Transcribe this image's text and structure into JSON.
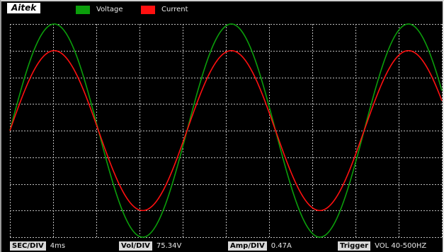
{
  "brand": "Aitek",
  "legend": [
    {
      "label": "Voltage",
      "color": "#0b9e0b"
    },
    {
      "label": "Current",
      "color": "#ff1010"
    }
  ],
  "status": {
    "sec_div_label": "SEC/DIV",
    "sec_div_value": "4ms",
    "vol_div_label": "Vol/DIV",
    "vol_div_value": "75.34V",
    "amp_div_label": "Amp/DIV",
    "amp_div_value": "0.47A",
    "trigger_label": "Trigger",
    "trigger_value": "VOL 40-500HZ"
  },
  "chart_data": {
    "type": "line",
    "x_unit": "divisions",
    "y_unit": "divisions",
    "xlim": [
      0,
      10
    ],
    "ylim": [
      -4,
      4
    ],
    "grid": true,
    "series": [
      {
        "name": "Voltage",
        "color": "#0b9e0b",
        "amplitude_div": 4.0,
        "period_div": 4.1,
        "phase_start_div": 0
      },
      {
        "name": "Current",
        "color": "#ff1010",
        "amplitude_div": 3.0,
        "period_div": 4.1,
        "phase_start_div": 0
      }
    ]
  }
}
